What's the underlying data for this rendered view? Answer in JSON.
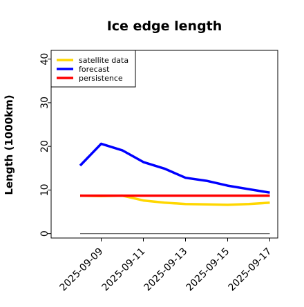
{
  "chart_data": {
    "type": "line",
    "title": "Ice edge length",
    "xlabel": "",
    "ylabel": "Length (1000km)",
    "x": [
      "2025-09-08",
      "2025-09-09",
      "2025-09-10",
      "2025-09-11",
      "2025-09-12",
      "2025-09-13",
      "2025-09-14",
      "2025-09-15",
      "2025-09-16",
      "2025-09-17"
    ],
    "xticks": [
      "2025-09-09",
      "2025-09-11",
      "2025-09-13",
      "2025-09-15",
      "2025-09-17"
    ],
    "xtick_colors": [
      "#228B22",
      "#000000",
      "#000000",
      "#000000",
      "#000000"
    ],
    "ylim": [
      -1,
      42
    ],
    "yticks": [
      0,
      10,
      20,
      30,
      40
    ],
    "grid": false,
    "legend_position": "top-left",
    "series": [
      {
        "name": "satellite data",
        "color": "#FFD700",
        "values": [
          8.7,
          8.6,
          8.7,
          7.6,
          7.1,
          6.8,
          6.7,
          6.6,
          6.8,
          7.1
        ]
      },
      {
        "name": "forecast",
        "color": "#0000FF",
        "values": [
          15.6,
          20.6,
          19.1,
          16.4,
          14.9,
          12.8,
          12.1,
          11.0,
          10.2,
          9.4
        ]
      },
      {
        "name": "persistence",
        "color": "#FF0000",
        "values": [
          8.7,
          8.7,
          8.7,
          8.7,
          8.7,
          8.7,
          8.7,
          8.7,
          8.7,
          8.7
        ]
      }
    ],
    "baseline": {
      "value": 0,
      "color": "#555555"
    }
  }
}
